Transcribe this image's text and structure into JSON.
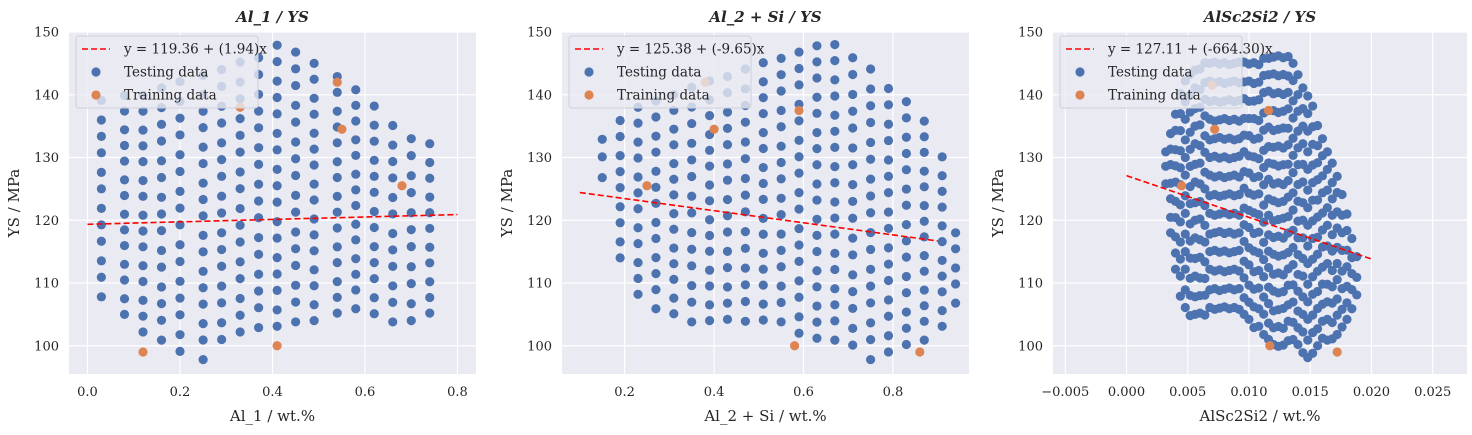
{
  "chart_data": [
    {
      "type": "scatter",
      "title": "Al_1 / YS",
      "xlabel": "Al_1 / wt.%",
      "ylabel": "YS / MPa",
      "xlim": [
        -0.04,
        0.84
      ],
      "ylim": [
        95.5,
        150
      ],
      "xticks": [
        0.0,
        0.2,
        0.4,
        0.6,
        0.8
      ],
      "xtick_labels": [
        "0.0",
        "0.2",
        "0.4",
        "0.6",
        "0.8"
      ],
      "yticks": [
        100,
        110,
        120,
        130,
        140,
        150
      ],
      "ytick_labels": [
        "100",
        "110",
        "120",
        "130",
        "140",
        "150"
      ],
      "grid": true,
      "legend_position": "top-left",
      "testing_grid": {
        "x": [
          0.03,
          0.08,
          0.12,
          0.16,
          0.2,
          0.25,
          0.29,
          0.33,
          0.37,
          0.41,
          0.45,
          0.49,
          0.54,
          0.58,
          0.62,
          0.66,
          0.7,
          0.74
        ],
        "y_low": [
          108,
          105,
          102,
          101,
          99,
          98,
          101,
          102,
          103,
          103,
          104,
          104,
          105,
          106,
          105,
          104,
          104,
          105
        ],
        "y_high": [
          139,
          140,
          140,
          141,
          142,
          143,
          144,
          145,
          146,
          148,
          147,
          145,
          143,
          141,
          138,
          135,
          133,
          132
        ],
        "y_step": 2.8
      },
      "series": [
        {
          "name": "y = 119.36 + (1.94)x",
          "type": "line",
          "style": "dashed",
          "color": "#ff0000",
          "x": [
            0.0,
            0.8
          ],
          "y": [
            119.36,
            120.91
          ]
        },
        {
          "name": "Testing data",
          "type": "scatter",
          "color": "#4c72b0",
          "points": []
        },
        {
          "name": "Training data",
          "type": "scatter",
          "color": "#dd8452",
          "points": [
            [
              0.12,
              99
            ],
            [
              0.41,
              100
            ],
            [
              0.33,
              138
            ],
            [
              0.54,
              142
            ],
            [
              0.55,
              134.5
            ],
            [
              0.68,
              125.5
            ]
          ]
        }
      ]
    },
    {
      "type": "scatter",
      "title": "Al_2 + Si / YS",
      "xlabel": "Al_2 + Si / wt.%",
      "ylabel": "YS / MPa",
      "xlim": [
        0.06,
        0.97
      ],
      "ylim": [
        95.5,
        150
      ],
      "xticks": [
        0.2,
        0.4,
        0.6,
        0.8
      ],
      "xtick_labels": [
        "0.2",
        "0.4",
        "0.6",
        "0.8"
      ],
      "yticks": [
        100,
        110,
        120,
        130,
        140,
        150
      ],
      "ytick_labels": [
        "100",
        "110",
        "120",
        "130",
        "140",
        "150"
      ],
      "grid": true,
      "legend_position": "top-left",
      "testing_grid": {
        "x": [
          0.15,
          0.19,
          0.23,
          0.27,
          0.31,
          0.35,
          0.39,
          0.43,
          0.47,
          0.51,
          0.55,
          0.59,
          0.63,
          0.67,
          0.71,
          0.75,
          0.79,
          0.83,
          0.87,
          0.91,
          0.94
        ],
        "y_low": [
          127,
          114,
          108,
          106,
          105,
          104,
          104,
          104,
          104,
          104,
          104,
          102,
          101,
          101,
          100,
          98,
          99,
          100,
          101,
          103,
          107
        ],
        "y_high": [
          133,
          136,
          138,
          139,
          140,
          141,
          142,
          143,
          144,
          145,
          146,
          147,
          148,
          148,
          146,
          144,
          141,
          139,
          136,
          130,
          118
        ],
        "y_step": 2.8
      },
      "series": [
        {
          "name": "y = 125.38 + (-9.65)x",
          "type": "line",
          "style": "dashed",
          "color": "#ff0000",
          "x": [
            0.1,
            0.9
          ],
          "y": [
            124.42,
            116.7
          ]
        },
        {
          "name": "Testing data",
          "type": "scatter",
          "color": "#4c72b0",
          "points": []
        },
        {
          "name": "Training data",
          "type": "scatter",
          "color": "#dd8452",
          "points": [
            [
              0.25,
              125.5
            ],
            [
              0.4,
              134.5
            ],
            [
              0.38,
              142
            ],
            [
              0.59,
              137.5
            ],
            [
              0.58,
              100
            ],
            [
              0.86,
              99
            ]
          ]
        }
      ]
    },
    {
      "type": "scatter",
      "title": "AlSc2Si2 / YS",
      "xlabel": "AlSc2Si2 / wt.%",
      "ylabel": "YS / MPa",
      "xlim": [
        -0.006,
        0.0278
      ],
      "ylim": [
        95.5,
        150
      ],
      "xticks": [
        -0.005,
        0.0,
        0.005,
        0.01,
        0.015,
        0.02,
        0.025
      ],
      "xtick_labels": [
        "−0.005",
        "0.000",
        "0.005",
        "0.010",
        "0.015",
        "0.020",
        "0.025"
      ],
      "yticks": [
        100,
        110,
        120,
        130,
        140,
        150
      ],
      "ytick_labels": [
        "100",
        "110",
        "120",
        "130",
        "140",
        "150"
      ],
      "grid": true,
      "legend_position": "top-left",
      "testing_grid": {
        "x": [
          0.0032,
          0.0036,
          0.004,
          0.0044,
          0.0048,
          0.0052,
          0.0056,
          0.006,
          0.0064,
          0.0068,
          0.0072,
          0.0076,
          0.008,
          0.0084,
          0.0088,
          0.0092,
          0.0096,
          0.01,
          0.0104,
          0.0108,
          0.0112,
          0.0116,
          0.012,
          0.0124,
          0.0128,
          0.0132,
          0.0136,
          0.014,
          0.0144,
          0.0148,
          0.0152,
          0.0156,
          0.016,
          0.0164,
          0.0168,
          0.0172,
          0.0176,
          0.018,
          0.0184,
          0.0188
        ],
        "y_low": [
          126,
          118,
          112,
          108,
          106,
          105,
          105,
          105,
          105,
          106,
          106,
          106,
          106,
          106,
          106,
          106,
          105,
          104,
          103,
          103,
          102,
          101,
          100,
          100,
          100,
          101,
          101,
          100,
          99,
          98,
          99,
          100,
          101,
          101,
          101,
          102,
          103,
          104,
          106,
          108
        ],
        "y_high": [
          131,
          134,
          137,
          140,
          142,
          143,
          144,
          144,
          145,
          145,
          145,
          145,
          145,
          145,
          145,
          145,
          145,
          145,
          145,
          145,
          146,
          146,
          146,
          146,
          146,
          146,
          145,
          143,
          141,
          140,
          138,
          135,
          133,
          131,
          129,
          127,
          124,
          121,
          117,
          114
        ],
        "y_step": 2.9
      },
      "series": [
        {
          "name": "y = 127.11 + (-664.30)x",
          "type": "line",
          "style": "dashed",
          "color": "#ff0000",
          "x": [
            0.0,
            0.02
          ],
          "y": [
            127.11,
            113.82
          ]
        },
        {
          "name": "Testing data",
          "type": "scatter",
          "color": "#4c72b0",
          "points": []
        },
        {
          "name": "Training data",
          "type": "scatter",
          "color": "#dd8452",
          "points": [
            [
              0.0045,
              125.5
            ],
            [
              0.0072,
              134.5
            ],
            [
              0.007,
              141.5
            ],
            [
              0.0116,
              137.5
            ],
            [
              0.0117,
              100
            ],
            [
              0.0172,
              99
            ]
          ]
        }
      ]
    }
  ]
}
